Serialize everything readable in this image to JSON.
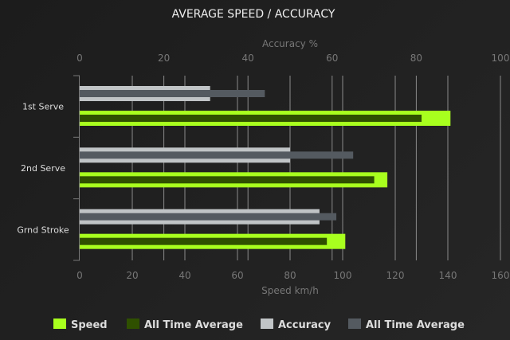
{
  "chart_data": {
    "type": "bar",
    "orientation": "horizontal",
    "title": "AVERAGE SPEED / ACCURACY",
    "categories": [
      "1st Serve",
      "2nd Serve",
      "Grnd Stroke"
    ],
    "axes": {
      "bottom": {
        "label": "Speed km/h",
        "range": [
          0,
          160
        ],
        "ticks": [
          0,
          20,
          40,
          60,
          80,
          100,
          120,
          140,
          160
        ]
      },
      "top": {
        "label": "Accuracy %",
        "range": [
          0,
          100
        ],
        "ticks": [
          0,
          20,
          40,
          60,
          80,
          100
        ]
      }
    },
    "grid": true,
    "legend_placement": "bottom",
    "series": [
      {
        "name": "Speed",
        "axis": "bottom",
        "color": "#a8ff1e",
        "values": [
          141,
          117,
          101
        ]
      },
      {
        "name": "All Time Average",
        "axis": "bottom",
        "color": "#2f5000",
        "values": [
          130,
          112,
          94
        ]
      },
      {
        "name": "Accuracy",
        "axis": "top",
        "color": "#c0c4c6",
        "values": [
          31,
          50,
          57
        ]
      },
      {
        "name": "All Time Average",
        "axis": "top",
        "color": "#545a60",
        "values": [
          44,
          65,
          61
        ]
      }
    ]
  }
}
